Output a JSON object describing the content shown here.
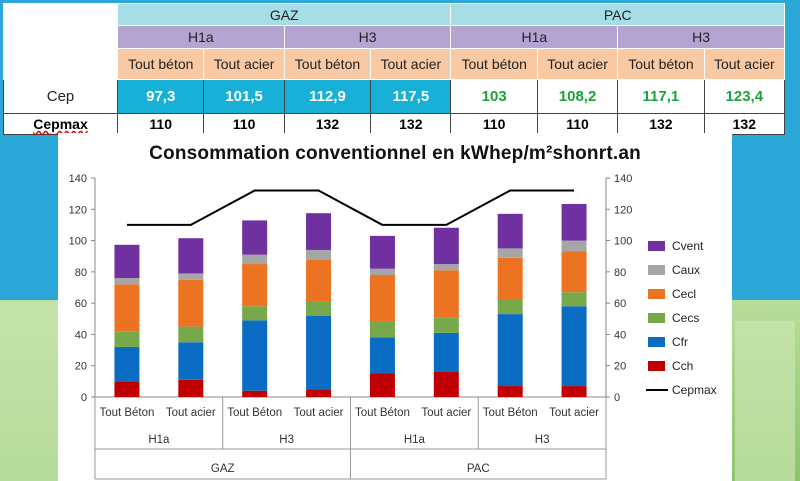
{
  "table": {
    "groups": [
      "GAZ",
      "PAC"
    ],
    "zones": [
      "H1a",
      "H3",
      "H1a",
      "H3"
    ],
    "structures": [
      "Tout béton",
      "Tout acier",
      "Tout béton",
      "Tout acier",
      "Tout béton",
      "Tout acier",
      "Tout béton",
      "Tout acier"
    ],
    "cep_label": "Cep",
    "cep_values": [
      "97,3",
      "101,5",
      "112,9",
      "117,5",
      "103",
      "108,2",
      "117,1",
      "123,4"
    ],
    "cepmax_label": "Cepmax",
    "cepmax_values": [
      "110",
      "110",
      "132",
      "132",
      "110",
      "110",
      "132",
      "132"
    ]
  },
  "chart_data": {
    "type": "bar",
    "stacked": true,
    "title": "Consommation conventionnel en kWhep/m²shonrt.an",
    "categories": [
      "Tout Béton",
      "Tout acier",
      "Tout Béton",
      "Tout acier",
      "Tout Béton",
      "Tout acier",
      "Tout Béton",
      "Tout acier"
    ],
    "category_groups_level2": [
      "H1a",
      "H3",
      "H1a",
      "H3"
    ],
    "category_groups_level1": [
      "GAZ",
      "PAC"
    ],
    "ylim": [
      0,
      140
    ],
    "yticks": [
      0,
      20,
      40,
      60,
      80,
      100,
      120,
      140
    ],
    "grid": false,
    "legend_position": "right",
    "series": [
      {
        "name": "Cch",
        "color": "#c00000",
        "values": [
          10,
          11,
          4,
          5,
          15,
          16,
          7,
          7
        ]
      },
      {
        "name": "Cfr",
        "color": "#0b6cc4",
        "values": [
          22,
          24,
          45,
          47,
          23,
          25,
          46,
          51
        ]
      },
      {
        "name": "Cecs",
        "color": "#77a84a",
        "values": [
          10,
          10,
          9,
          9,
          10,
          10,
          9,
          9
        ]
      },
      {
        "name": "Cecl",
        "color": "#eb7322",
        "values": [
          30,
          30,
          27,
          27,
          30,
          30,
          27,
          26
        ]
      },
      {
        "name": "Caux",
        "color": "#a6a6a6",
        "values": [
          4,
          4,
          6,
          6,
          4,
          4,
          6,
          7
        ]
      },
      {
        "name": "Cvent",
        "color": "#7030a0",
        "values": [
          21.3,
          22.5,
          21.9,
          23.5,
          21,
          23.2,
          22.1,
          23.4
        ]
      }
    ],
    "line_series": {
      "name": "Cepmax",
      "color": "#000000",
      "values": [
        110,
        110,
        132,
        132,
        110,
        110,
        132,
        132
      ]
    }
  }
}
